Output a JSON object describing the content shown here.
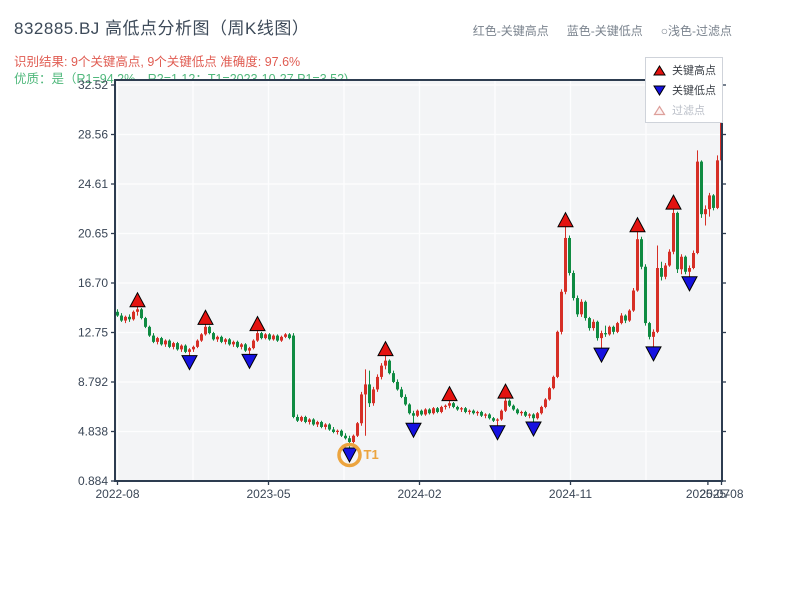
{
  "header": {
    "title": "832885.BJ 高低点分析图（周K线图）",
    "legend_items": [
      {
        "label": "红色-关键高点"
      },
      {
        "label": "蓝色-关键低点"
      },
      {
        "label": "○浅色-过滤点"
      }
    ],
    "result_line": "识别结果: 9个关键高点, 9个关键低点  准确度: 97.6%",
    "quality_line": "优质：是（R1=94.2%，R2=1.12；T1=2023-10-27 P1=3.52)"
  },
  "legend_box": {
    "high_label": "关键高点",
    "low_label": "关键低点",
    "filter_label": "过滤点"
  },
  "chart_data": {
    "type": "candlestick",
    "symbol": "832885.BJ",
    "timeframe": "weekly",
    "ylim": [
      0.884,
      32.52
    ],
    "y_tick_labels": [
      "32.52",
      "28.56",
      "24.61",
      "20.65",
      "16.70",
      "12.75",
      "8.792",
      "4.838",
      "0.884"
    ],
    "x_ticks": [
      {
        "label": "2022-08",
        "pos": 0
      },
      {
        "label": "2023-05",
        "pos": 37.75
      },
      {
        "label": "2024-02",
        "pos": 75.5
      },
      {
        "label": "2024-11",
        "pos": 113.25
      },
      {
        "label": "2025-07",
        "pos": 147.6
      },
      {
        "label": "2025-08",
        "pos": 151
      }
    ],
    "v_gridline_pos": [
      0,
      18.875,
      37.75,
      56.625,
      75.5,
      94.375,
      113.25,
      132.125
    ],
    "grid": true,
    "colors": {
      "up_candle": "#d62f26",
      "down_candle": "#0f8b42",
      "high_marker": "#e41310",
      "low_marker": "#1612e0",
      "filter_marker": "#dda09b",
      "spine": "#2d3c50",
      "plot_bg": "#f3f4f6",
      "gridline": "#fdfdfe",
      "tick_label": "#3a4656",
      "annotation_orange": "#eca43e"
    },
    "candles": [
      [
        14.4,
        14.6,
        14.0,
        14.1
      ],
      [
        14.1,
        14.3,
        13.6,
        13.7
      ],
      [
        13.7,
        14.1,
        13.5,
        14.0
      ],
      [
        14.0,
        14.2,
        13.6,
        13.8
      ],
      [
        13.8,
        14.5,
        13.7,
        14.4
      ],
      [
        14.4,
        14.8,
        14.1,
        14.6
      ],
      [
        14.6,
        14.7,
        13.8,
        13.9
      ],
      [
        13.9,
        14.0,
        13.1,
        13.2
      ],
      [
        13.2,
        13.3,
        12.4,
        12.5
      ],
      [
        12.5,
        12.7,
        11.9,
        12.0
      ],
      [
        12.0,
        12.4,
        11.8,
        12.3
      ],
      [
        12.3,
        12.4,
        11.7,
        11.8
      ],
      [
        11.8,
        12.2,
        11.6,
        12.1
      ],
      [
        12.1,
        12.2,
        11.5,
        11.6
      ],
      [
        11.6,
        12.0,
        11.4,
        11.9
      ],
      [
        11.9,
        12.0,
        11.3,
        11.4
      ],
      [
        11.4,
        11.8,
        11.2,
        11.7
      ],
      [
        11.7,
        11.8,
        11.1,
        11.2
      ],
      [
        11.2,
        11.5,
        10.9,
        11.4
      ],
      [
        11.4,
        11.7,
        11.2,
        11.6
      ],
      [
        11.6,
        12.2,
        11.5,
        12.1
      ],
      [
        12.1,
        12.7,
        12.0,
        12.6
      ],
      [
        12.6,
        13.4,
        12.5,
        13.2
      ],
      [
        13.2,
        13.3,
        12.6,
        12.7
      ],
      [
        12.7,
        12.8,
        12.1,
        12.2
      ],
      [
        12.2,
        12.5,
        12.0,
        12.4
      ],
      [
        12.4,
        12.5,
        11.9,
        12.0
      ],
      [
        12.0,
        12.3,
        11.8,
        12.2
      ],
      [
        12.2,
        12.3,
        11.7,
        11.8
      ],
      [
        11.8,
        12.1,
        11.6,
        12.0
      ],
      [
        12.0,
        12.1,
        11.5,
        11.6
      ],
      [
        11.6,
        11.9,
        11.4,
        11.8
      ],
      [
        11.8,
        11.9,
        11.2,
        11.3
      ],
      [
        11.3,
        11.6,
        11.0,
        11.5
      ],
      [
        11.5,
        12.2,
        11.4,
        12.1
      ],
      [
        12.1,
        12.9,
        12.0,
        12.7
      ],
      [
        12.7,
        12.8,
        12.2,
        12.3
      ],
      [
        12.3,
        12.7,
        12.2,
        12.6
      ],
      [
        12.6,
        12.7,
        12.1,
        12.2
      ],
      [
        12.2,
        12.6,
        12.1,
        12.5
      ],
      [
        12.5,
        12.6,
        12.0,
        12.1
      ],
      [
        12.1,
        12.5,
        12.0,
        12.4
      ],
      [
        12.4,
        12.7,
        12.3,
        12.6
      ],
      [
        12.6,
        12.7,
        12.2,
        12.3
      ],
      [
        12.5,
        12.7,
        5.9,
        6.0
      ],
      [
        6.0,
        6.2,
        5.6,
        5.7
      ],
      [
        5.7,
        6.1,
        5.6,
        6.0
      ],
      [
        6.0,
        6.1,
        5.5,
        5.6
      ],
      [
        5.6,
        5.9,
        5.4,
        5.8
      ],
      [
        5.8,
        5.9,
        5.3,
        5.4
      ],
      [
        5.4,
        5.7,
        5.2,
        5.6
      ],
      [
        5.6,
        5.7,
        5.1,
        5.2
      ],
      [
        5.2,
        5.5,
        5.0,
        5.4
      ],
      [
        5.4,
        5.5,
        4.9,
        5.0
      ],
      [
        5.0,
        5.2,
        4.7,
        4.8
      ],
      [
        4.8,
        5.0,
        4.6,
        4.9
      ],
      [
        4.9,
        5.0,
        4.4,
        4.5
      ],
      [
        4.5,
        4.7,
        4.2,
        4.3
      ],
      [
        4.3,
        4.5,
        3.5,
        4.0
      ],
      [
        4.0,
        4.6,
        3.9,
        4.5
      ],
      [
        4.5,
        5.6,
        4.4,
        5.5
      ],
      [
        5.5,
        8.0,
        5.3,
        7.8
      ],
      [
        7.8,
        9.8,
        4.5,
        8.6
      ],
      [
        8.6,
        9.7,
        6.8,
        7.1
      ],
      [
        7.1,
        8.4,
        6.9,
        8.2
      ],
      [
        8.2,
        9.4,
        8.0,
        9.2
      ],
      [
        9.2,
        10.3,
        9.0,
        10.1
      ],
      [
        10.1,
        10.9,
        9.8,
        10.5
      ],
      [
        10.5,
        10.6,
        9.4,
        9.5
      ],
      [
        9.5,
        9.7,
        8.7,
        8.8
      ],
      [
        8.8,
        9.0,
        8.1,
        8.2
      ],
      [
        8.2,
        8.4,
        7.5,
        7.6
      ],
      [
        7.6,
        7.8,
        6.9,
        7.0
      ],
      [
        7.0,
        7.1,
        6.2,
        6.3
      ],
      [
        6.3,
        6.5,
        5.5,
        6.1
      ],
      [
        6.1,
        6.6,
        6.0,
        6.5
      ],
      [
        6.5,
        6.6,
        6.1,
        6.2
      ],
      [
        6.2,
        6.7,
        6.1,
        6.6
      ],
      [
        6.6,
        6.7,
        6.2,
        6.3
      ],
      [
        6.3,
        6.8,
        6.2,
        6.7
      ],
      [
        6.7,
        6.8,
        6.3,
        6.4
      ],
      [
        6.4,
        6.9,
        6.3,
        6.8
      ],
      [
        6.8,
        7.0,
        6.6,
        6.9
      ],
      [
        6.9,
        7.3,
        6.7,
        7.1
      ],
      [
        7.1,
        7.2,
        6.7,
        6.8
      ],
      [
        6.8,
        6.9,
        6.5,
        6.6
      ],
      [
        6.6,
        6.8,
        6.4,
        6.7
      ],
      [
        6.7,
        6.8,
        6.3,
        6.4
      ],
      [
        6.4,
        6.6,
        6.2,
        6.5
      ],
      [
        6.5,
        6.6,
        6.2,
        6.3
      ],
      [
        6.3,
        6.5,
        6.1,
        6.4
      ],
      [
        6.4,
        6.5,
        6.0,
        6.1
      ],
      [
        6.1,
        6.3,
        5.9,
        6.2
      ],
      [
        6.2,
        6.3,
        5.8,
        5.9
      ],
      [
        5.9,
        6.0,
        5.6,
        5.7
      ],
      [
        5.7,
        5.9,
        5.3,
        5.8
      ],
      [
        5.8,
        6.6,
        5.7,
        6.5
      ],
      [
        6.5,
        7.5,
        6.4,
        7.3
      ],
      [
        7.3,
        7.4,
        6.8,
        6.9
      ],
      [
        6.9,
        7.0,
        6.5,
        6.6
      ],
      [
        6.6,
        6.7,
        6.2,
        6.3
      ],
      [
        6.3,
        6.5,
        6.1,
        6.4
      ],
      [
        6.4,
        6.5,
        6.0,
        6.1
      ],
      [
        6.1,
        6.3,
        5.9,
        6.2
      ],
      [
        6.2,
        6.3,
        5.6,
        5.9
      ],
      [
        5.9,
        6.4,
        5.8,
        6.3
      ],
      [
        6.3,
        6.9,
        6.2,
        6.8
      ],
      [
        6.8,
        7.5,
        6.7,
        7.4
      ],
      [
        7.4,
        8.4,
        7.3,
        8.3
      ],
      [
        8.3,
        9.3,
        8.2,
        9.2
      ],
      [
        9.2,
        12.9,
        9.1,
        12.8
      ],
      [
        12.8,
        16.2,
        12.6,
        16.0
      ],
      [
        16.0,
        21.2,
        15.8,
        20.3
      ],
      [
        20.3,
        20.5,
        17.3,
        17.5
      ],
      [
        17.5,
        17.7,
        15.3,
        15.5
      ],
      [
        15.5,
        15.7,
        14.0,
        14.2
      ],
      [
        14.2,
        15.4,
        14.0,
        15.2
      ],
      [
        15.2,
        15.3,
        13.7,
        13.9
      ],
      [
        13.9,
        14.0,
        12.9,
        13.1
      ],
      [
        13.1,
        13.8,
        12.9,
        13.6
      ],
      [
        13.6,
        13.7,
        12.1,
        12.3
      ],
      [
        12.3,
        12.9,
        11.5,
        12.7
      ],
      [
        12.7,
        13.3,
        12.4,
        12.6
      ],
      [
        12.6,
        13.3,
        12.5,
        13.2
      ],
      [
        13.2,
        13.3,
        12.6,
        12.8
      ],
      [
        12.8,
        13.6,
        12.7,
        13.5
      ],
      [
        13.5,
        14.3,
        13.4,
        14.1
      ],
      [
        14.1,
        14.2,
        13.5,
        13.7
      ],
      [
        13.7,
        14.6,
        13.6,
        14.5
      ],
      [
        14.5,
        16.3,
        14.4,
        16.1
      ],
      [
        16.1,
        20.8,
        16.0,
        20.2
      ],
      [
        20.2,
        20.4,
        17.8,
        18.0
      ],
      [
        18.0,
        18.2,
        13.3,
        13.5
      ],
      [
        13.5,
        13.6,
        12.2,
        12.4
      ],
      [
        12.4,
        13.0,
        11.6,
        12.8
      ],
      [
        12.8,
        19.7,
        12.7,
        17.9
      ],
      [
        17.9,
        18.4,
        16.9,
        17.2
      ],
      [
        17.2,
        18.3,
        17.0,
        18.1
      ],
      [
        18.1,
        19.4,
        18.0,
        19.2
      ],
      [
        19.2,
        22.6,
        19.0,
        22.3
      ],
      [
        22.3,
        22.4,
        17.5,
        17.8
      ],
      [
        17.8,
        19.0,
        17.4,
        18.8
      ],
      [
        18.8,
        18.9,
        17.4,
        17.6
      ],
      [
        17.6,
        18.1,
        17.2,
        17.9
      ],
      [
        17.9,
        19.3,
        17.8,
        19.1
      ],
      [
        19.1,
        27.3,
        19.0,
        26.4
      ],
      [
        26.4,
        26.5,
        21.9,
        22.2
      ],
      [
        22.2,
        22.9,
        21.3,
        22.6
      ],
      [
        22.6,
        23.9,
        22.0,
        23.7
      ],
      [
        23.7,
        23.8,
        22.5,
        22.7
      ],
      [
        22.7,
        26.9,
        22.6,
        26.5
      ],
      [
        26.5,
        30.2,
        24.3,
        29.8
      ]
    ],
    "key_highs": [
      {
        "i": 5,
        "price": 14.8
      },
      {
        "i": 22,
        "price": 13.4
      },
      {
        "i": 35,
        "price": 12.9
      },
      {
        "i": 67,
        "price": 10.9
      },
      {
        "i": 83,
        "price": 7.3
      },
      {
        "i": 97,
        "price": 7.5
      },
      {
        "i": 112,
        "price": 21.2
      },
      {
        "i": 130,
        "price": 20.8
      },
      {
        "i": 139,
        "price": 22.6
      }
    ],
    "key_lows": [
      {
        "i": 18,
        "price": 10.9
      },
      {
        "i": 33,
        "price": 11.0
      },
      {
        "i": 58,
        "price": 3.52,
        "label": "T1",
        "circled": true
      },
      {
        "i": 74,
        "price": 5.5
      },
      {
        "i": 95,
        "price": 5.3
      },
      {
        "i": 104,
        "price": 5.6
      },
      {
        "i": 121,
        "price": 11.5
      },
      {
        "i": 134,
        "price": 11.6
      },
      {
        "i": 143,
        "price": 17.2
      }
    ]
  }
}
